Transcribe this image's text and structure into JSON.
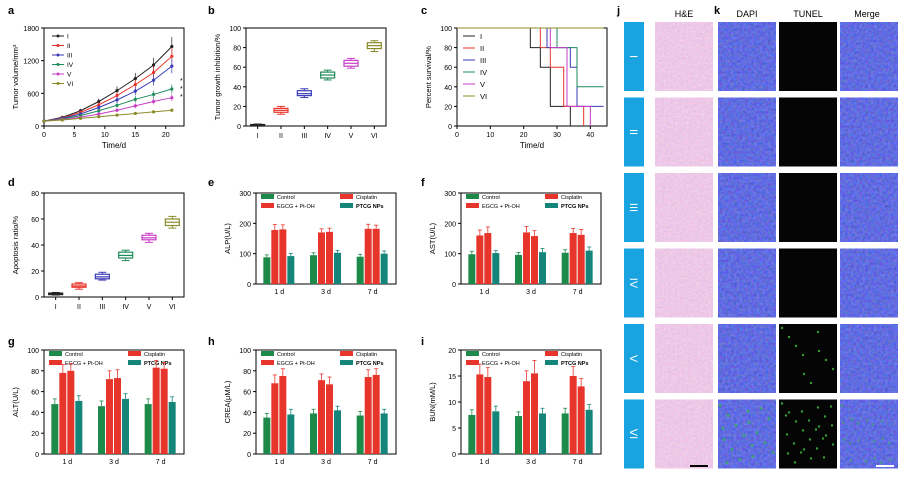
{
  "figure": {
    "panel_labels": [
      "a",
      "b",
      "c",
      "d",
      "e",
      "f",
      "g",
      "h",
      "i",
      "j",
      "k"
    ],
    "groups": [
      "I",
      "II",
      "III",
      "IV",
      "V",
      "VI"
    ],
    "colors": [
      "#222222",
      "#e8352b",
      "#3a3ab8",
      "#1f8a5a",
      "#c83ec8",
      "#8c8c2a"
    ],
    "bar_colors": [
      "#1e8a4a",
      "#e8352b",
      "#e8352b",
      "#15857a"
    ],
    "micro_headers": {
      "he": "H&E",
      "dapi": "DAPI",
      "tunel": "TUNEL",
      "merge": "Merge"
    },
    "micro_rows": [
      "I",
      "II",
      "III",
      "IV",
      "V",
      "VI"
    ]
  },
  "chart_data": [
    {
      "id": "a",
      "type": "line",
      "xlabel": "Time/d",
      "ylabel": "Tumor volume/mm³",
      "x": [
        0,
        3,
        6,
        9,
        12,
        15,
        18,
        21
      ],
      "xticks": [
        0,
        5,
        10,
        15,
        20
      ],
      "yticks": [
        0,
        600,
        1200,
        1800
      ],
      "xlim": [
        0,
        23
      ],
      "ylim": [
        0,
        1800
      ],
      "series": [
        {
          "name": "I",
          "values": [
            90,
            160,
            280,
            450,
            650,
            870,
            1120,
            1460
          ]
        },
        {
          "name": "II",
          "values": [
            90,
            150,
            250,
            390,
            560,
            760,
            980,
            1280
          ]
        },
        {
          "name": "III",
          "values": [
            90,
            140,
            220,
            340,
            480,
            640,
            840,
            1100
          ]
        },
        {
          "name": "IV",
          "values": [
            90,
            130,
            190,
            280,
            380,
            490,
            580,
            680
          ]
        },
        {
          "name": "V",
          "values": [
            90,
            120,
            160,
            220,
            290,
            370,
            450,
            520
          ]
        },
        {
          "name": "VI",
          "values": [
            90,
            110,
            140,
            170,
            200,
            230,
            260,
            290
          ]
        }
      ],
      "annotations": [
        "*",
        "*",
        "*"
      ]
    },
    {
      "id": "b",
      "type": "box",
      "ylabel": "Tumor growth inhibition/%",
      "categories": [
        "I",
        "II",
        "III",
        "IV",
        "V",
        "VI"
      ],
      "yticks": [
        0,
        20,
        40,
        60,
        80,
        100
      ],
      "ylim": [
        0,
        100
      ],
      "boxes": [
        [
          0,
          0.5,
          1,
          1.5,
          2
        ],
        [
          12,
          14,
          16,
          18,
          20
        ],
        [
          29,
          31,
          33,
          36,
          38
        ],
        [
          47,
          49,
          52,
          55,
          57
        ],
        [
          59,
          61,
          64,
          67,
          69
        ],
        [
          76,
          79,
          82,
          85,
          87
        ]
      ]
    },
    {
      "id": "c",
      "type": "step",
      "xlabel": "Time/d",
      "ylabel": "Percent survival/%",
      "xticks": [
        0,
        10,
        20,
        30,
        40
      ],
      "yticks": [
        0,
        20,
        40,
        60,
        80,
        100
      ],
      "xlim": [
        0,
        45
      ],
      "ylim": [
        0,
        100
      ],
      "series": [
        {
          "name": "I",
          "points": [
            [
              0,
              100
            ],
            [
              22,
              100
            ],
            [
              22,
              80
            ],
            [
              25,
              80
            ],
            [
              25,
              60
            ],
            [
              28,
              60
            ],
            [
              28,
              20
            ],
            [
              34,
              20
            ],
            [
              34,
              0
            ]
          ]
        },
        {
          "name": "II",
          "points": [
            [
              0,
              100
            ],
            [
              25,
              100
            ],
            [
              25,
              80
            ],
            [
              28,
              80
            ],
            [
              28,
              60
            ],
            [
              32,
              60
            ],
            [
              32,
              20
            ],
            [
              38,
              20
            ],
            [
              38,
              0
            ]
          ]
        },
        {
          "name": "III",
          "points": [
            [
              0,
              100
            ],
            [
              27,
              100
            ],
            [
              27,
              80
            ],
            [
              34,
              80
            ],
            [
              34,
              60
            ],
            [
              36,
              60
            ],
            [
              36,
              20
            ],
            [
              44,
              20
            ]
          ]
        },
        {
          "name": "IV",
          "points": [
            [
              0,
              100
            ],
            [
              30,
              100
            ],
            [
              30,
              80
            ],
            [
              36,
              80
            ],
            [
              36,
              40
            ],
            [
              44,
              40
            ]
          ]
        },
        {
          "name": "V",
          "points": [
            [
              0,
              100
            ],
            [
              28,
              100
            ],
            [
              28,
              80
            ],
            [
              33,
              80
            ],
            [
              33,
              20
            ],
            [
              40,
              20
            ],
            [
              40,
              0
            ]
          ]
        },
        {
          "name": "VI",
          "points": [
            [
              0,
              100
            ],
            [
              44,
              100
            ]
          ]
        }
      ]
    },
    {
      "id": "d",
      "type": "box",
      "ylabel": "Apoptosis ratio/%",
      "categories": [
        "I",
        "II",
        "III",
        "IV",
        "V",
        "VI"
      ],
      "yticks": [
        0,
        20,
        40,
        60,
        80
      ],
      "ylim": [
        0,
        80
      ],
      "boxes": [
        [
          1.5,
          2,
          2.5,
          3,
          3.5
        ],
        [
          6,
          7.5,
          8.5,
          10,
          11
        ],
        [
          13,
          14,
          15.5,
          17.5,
          19
        ],
        [
          28,
          30,
          32,
          34.5,
          36
        ],
        [
          42,
          44,
          45.5,
          47.5,
          49
        ],
        [
          53,
          55,
          57.5,
          60,
          62
        ]
      ]
    },
    {
      "id": "e",
      "type": "bar",
      "ylabel": "ALP(U/L)",
      "categories": [
        "1 d",
        "3 d",
        "7 d"
      ],
      "yticks": [
        0,
        100,
        200,
        300
      ],
      "ylim": [
        0,
        300
      ],
      "legend": [
        "Control",
        "Cisplatin",
        "EGCG + Pt-OH",
        "PTCG NPs"
      ],
      "values": [
        [
          88,
          178,
          180,
          92
        ],
        [
          95,
          170,
          172,
          103
        ],
        [
          90,
          182,
          182,
          100
        ]
      ],
      "errors": [
        [
          8,
          18,
          15,
          9
        ],
        [
          8,
          12,
          12,
          8
        ],
        [
          8,
          15,
          12,
          9
        ]
      ]
    },
    {
      "id": "f",
      "type": "bar",
      "ylabel": "AST(U/L)",
      "categories": [
        "1 d",
        "3 d",
        "7 d"
      ],
      "yticks": [
        0,
        100,
        200,
        300
      ],
      "ylim": [
        0,
        300
      ],
      "legend": [
        "Control",
        "Cisplatin",
        "EGCG + Pt-OH",
        "PTCG NPs"
      ],
      "values": [
        [
          98,
          160,
          168,
          102
        ],
        [
          96,
          170,
          158,
          105
        ],
        [
          103,
          168,
          162,
          110
        ]
      ],
      "errors": [
        [
          10,
          18,
          20,
          8
        ],
        [
          8,
          20,
          18,
          12
        ],
        [
          10,
          15,
          18,
          12
        ]
      ]
    },
    {
      "id": "g",
      "type": "bar",
      "ylabel": "ALT(U/L)",
      "categories": [
        "1 d",
        "3 d",
        "7 d"
      ],
      "yticks": [
        0,
        20,
        40,
        60,
        80,
        100
      ],
      "ylim": [
        0,
        100
      ],
      "legend": [
        "Control",
        "Cisplatin",
        "EGCG + Pt-OH",
        "PTCG NPs"
      ],
      "values": [
        [
          48,
          78,
          80,
          51
        ],
        [
          46,
          72,
          73,
          53
        ],
        [
          48,
          83,
          82,
          50
        ]
      ],
      "errors": [
        [
          5,
          8,
          7,
          5
        ],
        [
          5,
          8,
          8,
          5
        ],
        [
          5,
          7,
          6,
          5
        ]
      ]
    },
    {
      "id": "h",
      "type": "bar",
      "ylabel": "CREA(μM/L)",
      "categories": [
        "1 d",
        "3 d",
        "7 d"
      ],
      "yticks": [
        0,
        20,
        40,
        60,
        80,
        100
      ],
      "ylim": [
        0,
        100
      ],
      "legend": [
        "Control",
        "Cisplatin",
        "EGCG + Pt-OH",
        "PTCG NPs"
      ],
      "values": [
        [
          35,
          68,
          75,
          38
        ],
        [
          39,
          71,
          67,
          42
        ],
        [
          37,
          74,
          76,
          39
        ]
      ],
      "errors": [
        [
          4,
          8,
          7,
          5
        ],
        [
          4,
          6,
          7,
          4
        ],
        [
          4,
          7,
          6,
          4
        ]
      ]
    },
    {
      "id": "i",
      "type": "bar",
      "ylabel": "BUN(mM/L)",
      "categories": [
        "1 d",
        "3 d",
        "7 d"
      ],
      "yticks": [
        0,
        5,
        10,
        15,
        20
      ],
      "ylim": [
        0,
        20
      ],
      "legend": [
        "Control",
        "Cisplatin",
        "EGCG + Pt-OH",
        "PTCG NPs"
      ],
      "values": [
        [
          7.5,
          15.3,
          14.8,
          8.2
        ],
        [
          7.3,
          14,
          15.5,
          7.8
        ],
        [
          7.8,
          15,
          13,
          8.5
        ]
      ],
      "errors": [
        [
          1,
          2,
          1.8,
          1
        ],
        [
          0.8,
          2,
          2.5,
          1
        ],
        [
          1,
          1.8,
          1.5,
          1
        ]
      ]
    }
  ]
}
